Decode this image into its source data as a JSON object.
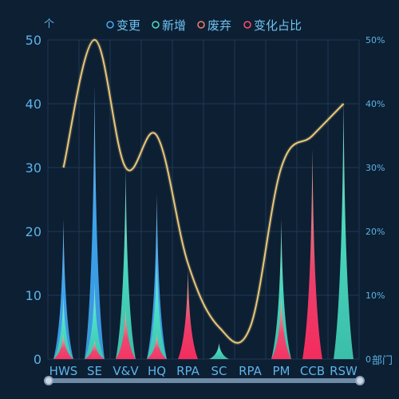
{
  "chart_data": {
    "type": "bar",
    "categories": [
      "HWS",
      "SE",
      "V&V",
      "HQ",
      "RPA",
      "SC",
      "RPA",
      "PM",
      "CCB",
      "RSW"
    ],
    "series": [
      {
        "name": "变更",
        "values": [
          22,
          43,
          0,
          26,
          0,
          0,
          0,
          0,
          0,
          0
        ],
        "color": "#3fa9f5",
        "legend_color": "#3fa9f5"
      },
      {
        "name": "新增",
        "values": [
          10,
          12,
          30,
          16,
          0,
          2.5,
          0,
          22,
          0,
          41
        ],
        "color": "#4de0c4",
        "legend_color": "#4de0c4"
      },
      {
        "name": "废弃",
        "values": [
          4,
          3,
          8,
          4,
          14,
          0,
          0,
          10,
          33,
          0
        ],
        "color": "#f2a0a0",
        "legend_color": "#f08070"
      },
      {
        "name": "变化占比",
        "values": [
          30,
          50,
          30,
          35,
          15,
          5,
          5,
          30,
          35,
          40
        ],
        "color": "#e8c87a",
        "legend_color": "#ff4d6d"
      }
    ],
    "y_left": {
      "label": "个",
      "min": 0,
      "max": 50,
      "ticks": [
        "0",
        "10",
        "20",
        "30",
        "40",
        "50"
      ]
    },
    "y_right": {
      "label": "部门",
      "min": 0,
      "max": 50,
      "ticks": [
        "0",
        "10%",
        "20%",
        "30%",
        "40%",
        "50%"
      ]
    },
    "grid": true,
    "legend": "top-center",
    "colors": {
      "background": "#0d1f33",
      "grid": "#1f3a55",
      "axis_text": "#5cb3e8",
      "waste_fill": "#f5426e",
      "slider": "#4a6a8a"
    }
  },
  "data_zoom": {
    "start_percent": 0,
    "end_percent": 100
  }
}
